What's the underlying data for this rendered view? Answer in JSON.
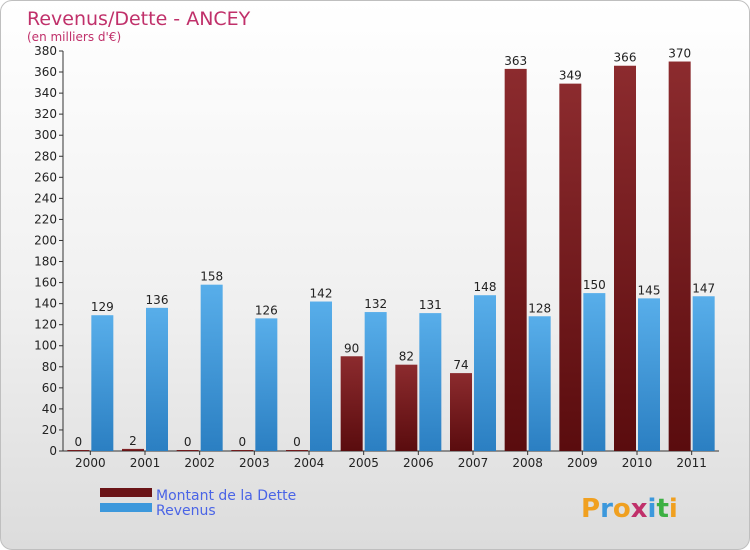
{
  "chart_data": {
    "type": "bar",
    "title": "Revenus/Dette - ANCEY",
    "subtitle": "(en milliers d'€)",
    "categories": [
      "2000",
      "2001",
      "2002",
      "2003",
      "2004",
      "2005",
      "2006",
      "2007",
      "2008",
      "2009",
      "2010",
      "2011"
    ],
    "series": [
      {
        "name": "Montant de la Dette",
        "values": [
          0,
          2,
          0,
          0,
          0,
          90,
          82,
          74,
          363,
          349,
          366,
          370
        ],
        "color": "#7b1f22"
      },
      {
        "name": "Revenus",
        "values": [
          129,
          136,
          158,
          126,
          142,
          132,
          131,
          148,
          128,
          150,
          145,
          147
        ],
        "color": "#3c98dc"
      }
    ],
    "ylim": [
      0,
      380
    ],
    "yticks": [
      0,
      20,
      40,
      60,
      80,
      100,
      120,
      140,
      160,
      180,
      200,
      220,
      240,
      260,
      280,
      300,
      320,
      340,
      360,
      380
    ],
    "grid": false,
    "legend_position": "bottom-left"
  },
  "brand": {
    "letters": [
      "P",
      "r",
      "o",
      "x",
      "i",
      "t",
      "i"
    ],
    "colors": [
      "#f0a020",
      "#3c98dc",
      "#f0a020",
      "#c0306a",
      "#3c98dc",
      "#3cb043",
      "#f0a020"
    ]
  }
}
